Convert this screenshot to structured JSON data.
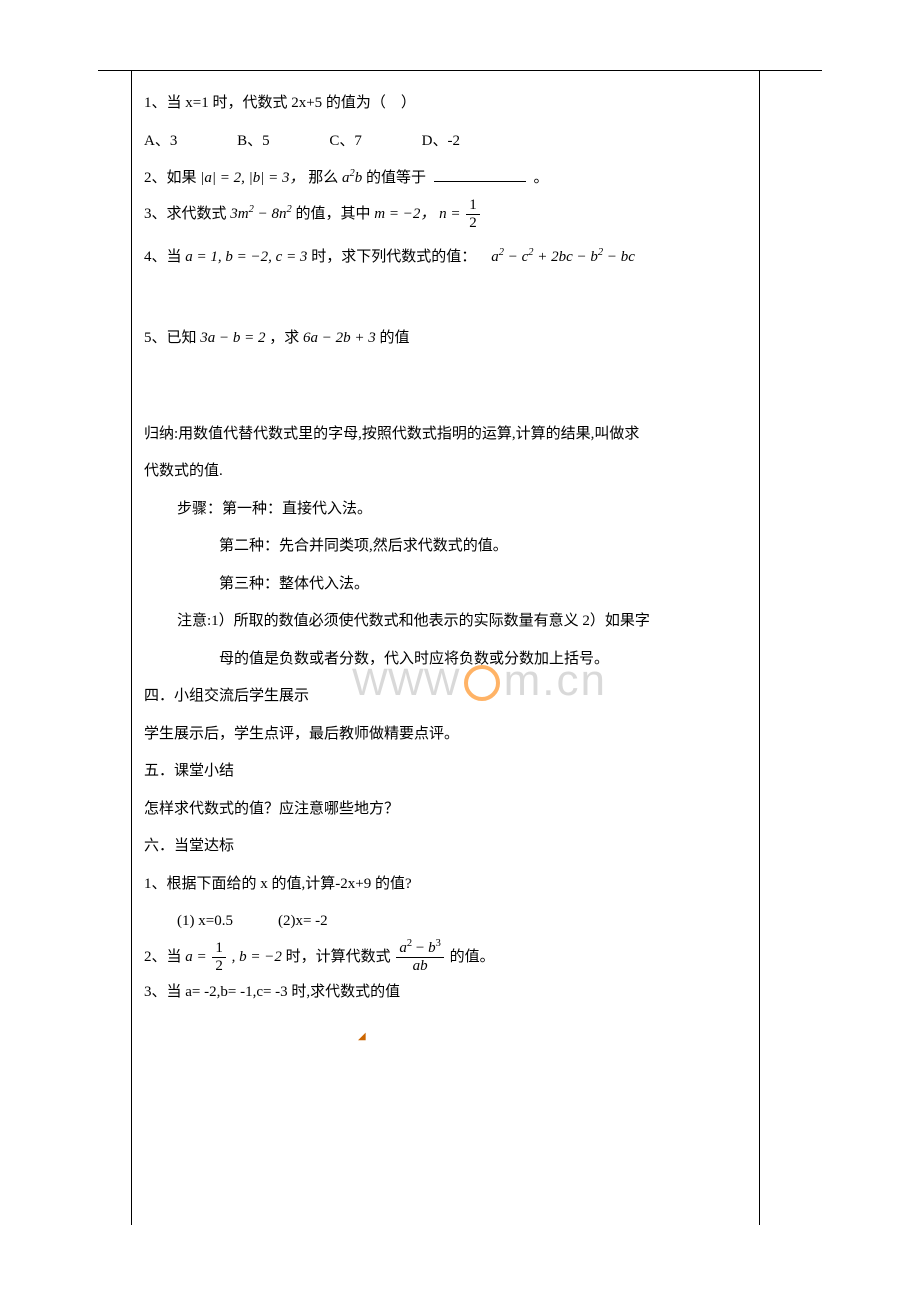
{
  "q1": {
    "stem_pre": "1、当 x=1 时，代数式 2x+5 的值为（",
    "stem_post": "）",
    "A": "A、3",
    "B": "B、5",
    "C": "C、7",
    "D": "D、-2"
  },
  "q2": {
    "pre": "2、如果",
    "abs_a": "|a| = 2,",
    "abs_b": "|b| = 3，",
    "mid": "那么",
    "expr": "a²b",
    "post": "的值等于",
    "end": "。"
  },
  "q3": {
    "pre": "3、求代数式",
    "expr": "3m² − 8n²",
    "mid": "的值，其中",
    "m": "m = −2，",
    "n_label": "n =",
    "n_num": "1",
    "n_den": "2"
  },
  "q4": {
    "pre": "4、当",
    "cond": "a = 1, b = −2, c = 3",
    "mid": "时，求下列代数式的值：",
    "expr": "a² − c² + 2bc − b² − bc"
  },
  "q5": {
    "pre": "5、已知",
    "cond": "3a − b = 2",
    "mid": "，求",
    "expr": "6a − 2b + 3",
    "post": "的值"
  },
  "summary": {
    "line1": "归纳:用数值代替代数式里的字母,按照代数式指明的运算,计算的结果,叫做求",
    "line2": "代数式的值.",
    "steps_label": "步骤：第一种：直接代入法。",
    "step2": "第二种：先合并同类项,然后求代数式的值。",
    "step3": "第三种：整体代入法。",
    "note_label": "注意:1）所取的数值必须使代数式和他表示的实际数量有意义 2）如果字",
    "note_line2": "母的值是负数或者分数，代入时应将负数或分数加上括号。"
  },
  "sec4": {
    "title": "四．小组交流后学生展示",
    "body": "学生展示后，学生点评，最后教师做精要点评。"
  },
  "sec5": {
    "title": "五．课堂小结",
    "body": "怎样求代数式的值？应注意哪些地方？"
  },
  "sec6": {
    "title": "六．当堂达标",
    "p1": "1、根据下面给的 x 的值,计算-2x+9 的值?",
    "p1a": "(1) x=0.5",
    "p1b": "(2)x= -2",
    "p2_pre": "2、当",
    "p2_a_label": "a =",
    "p2_a_num": "1",
    "p2_a_den": "2",
    "p2_b": ", b = −2",
    "p2_mid": "时，计算代数式",
    "p2_frac_num": "a² − b³",
    "p2_frac_den": "ab",
    "p2_post": "的值。",
    "p3": "3、当 a= -2,b= -1,c= -3 时,求代数式的值"
  },
  "watermark": "m.cn"
}
